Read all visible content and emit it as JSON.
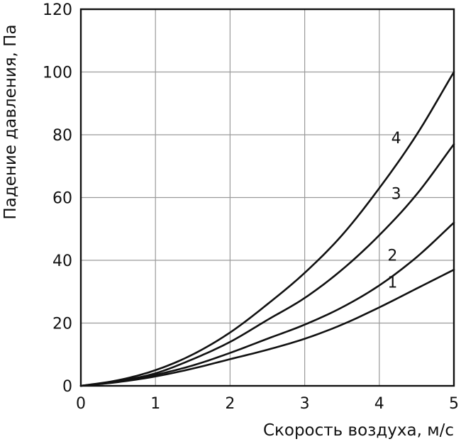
{
  "chart_data": {
    "type": "line",
    "xlabel": "Скорость воздуха, м/с",
    "ylabel": "Падение давления, Па",
    "xlim": [
      0,
      5
    ],
    "ylim": [
      0,
      120
    ],
    "x_ticks": [
      0,
      1,
      2,
      3,
      4,
      5
    ],
    "y_ticks": [
      0,
      20,
      40,
      60,
      80,
      100,
      120
    ],
    "grid": true,
    "legend": "none",
    "line_color": "#111111",
    "x": [
      0,
      0.5,
      1,
      1.5,
      2,
      2.5,
      3,
      3.5,
      4,
      4.5,
      5
    ],
    "series": [
      {
        "name": "1",
        "values": [
          0,
          1.2,
          3,
          5.5,
          8.5,
          11.5,
          15,
          19.5,
          25,
          31,
          37
        ]
      },
      {
        "name": "2",
        "values": [
          0,
          1.3,
          3.5,
          6.5,
          10.5,
          15,
          19.5,
          25,
          32,
          41,
          52
        ]
      },
      {
        "name": "3",
        "values": [
          0,
          1.5,
          4,
          8.5,
          14,
          21,
          28,
          37,
          48,
          61,
          77
        ]
      },
      {
        "name": "4",
        "values": [
          0,
          1.8,
          5,
          10,
          17,
          26,
          36,
          48,
          63,
          80,
          100
        ]
      }
    ],
    "series_label_x": [
      4.3,
      4.3,
      4.35,
      4.35
    ]
  }
}
